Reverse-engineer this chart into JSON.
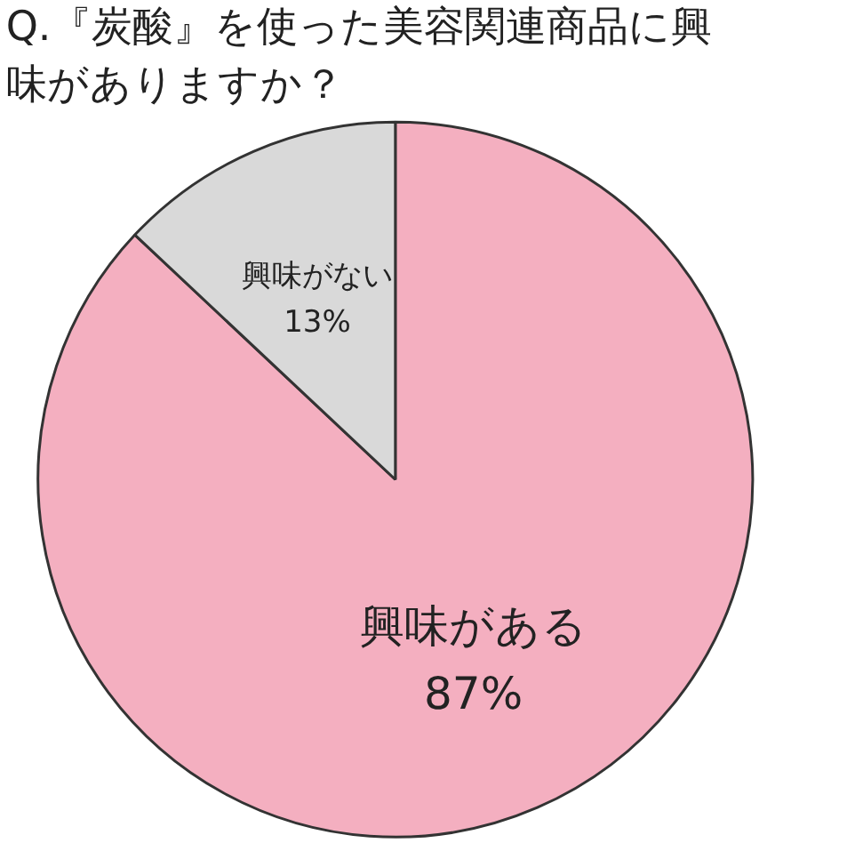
{
  "chart_data": {
    "type": "pie",
    "title": "Q.『炭酸』を使った美容関連商品に興味がありますか？",
    "categories": [
      "興味がある",
      "興味がない"
    ],
    "values": [
      87,
      13
    ],
    "colors": [
      "#f4afc0",
      "#d9d9d9"
    ],
    "value_labels": [
      "87%",
      "13%"
    ],
    "legend": false
  }
}
